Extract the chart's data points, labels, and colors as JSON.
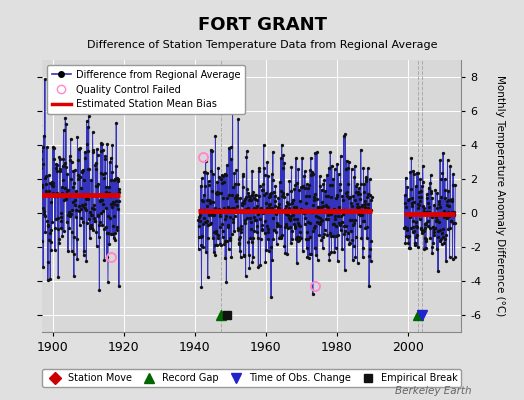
{
  "title": "FORT GRANT",
  "subtitle": "Difference of Station Temperature Data from Regional Average",
  "ylabel": "Monthly Temperature Anomaly Difference (°C)",
  "xlabel_ticks": [
    1900,
    1920,
    1940,
    1960,
    1980,
    2000
  ],
  "ylim": [
    -7,
    9
  ],
  "yticks": [
    -6,
    -4,
    -2,
    0,
    2,
    4,
    6,
    8
  ],
  "xlim": [
    1897,
    2015
  ],
  "background_color": "#e0e0e0",
  "plot_bg_color": "#d8d8d8",
  "grid_color": "#ffffff",
  "line_color": "#3333bb",
  "bias_color": "#dd0000",
  "qc_fail_color": "#ff88cc",
  "station_move_color": "#cc0000",
  "record_gap_color": "#006600",
  "tobs_color": "#2222cc",
  "emp_break_color": "#111111",
  "watermark": "Berkeley Earth",
  "seg1": {
    "start": 1896.0,
    "end": 1918.9,
    "bias": 1.05,
    "spread": 2.1
  },
  "seg2": {
    "start": 1941.0,
    "end": 1989.9,
    "bias": 0.1,
    "spread": 1.7
  },
  "seg3": {
    "start": 1999.0,
    "end": 2013.4,
    "bias": -0.05,
    "spread": 1.5
  },
  "qc_points": [
    [
      1916.5,
      -2.6
    ],
    [
      1942.3,
      3.3
    ],
    [
      1974.0,
      -4.3
    ]
  ],
  "event_markers": {
    "record_gaps": [
      1947.5,
      2003.0
    ],
    "tobs_changes": [
      2004.0
    ],
    "emp_breaks": [
      1949.0
    ],
    "station_moves": []
  },
  "vert_lines": [
    1947.5,
    2003.0,
    2004.0
  ]
}
